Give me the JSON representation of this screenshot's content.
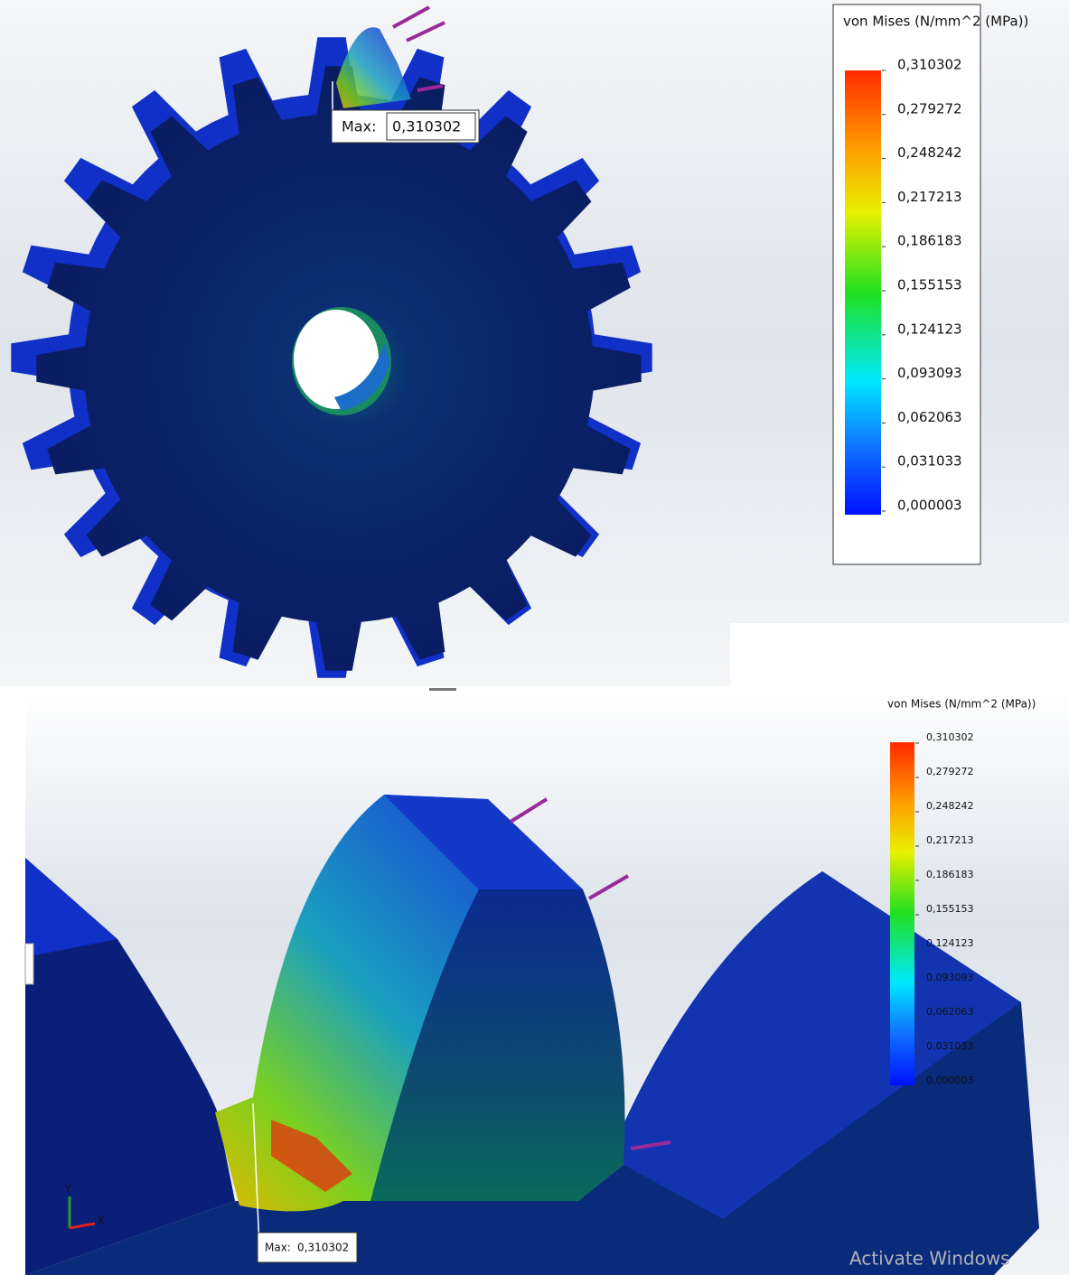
{
  "panels": [
    {
      "legend": {
        "title": "von Mises (N/mm^2 (MPa))",
        "labels": [
          "0,310302",
          "0,279272",
          "0,248242",
          "0,217213",
          "0,186183",
          "0,155153",
          "0,124123",
          "0,093093",
          "0,062063",
          "0,031033",
          "0,000003"
        ]
      },
      "probe": {
        "label": "Max:",
        "value": "0,310302"
      }
    },
    {
      "legend": {
        "title": "von Mises (N/mm^2 (MPa))",
        "labels": [
          "0,310302",
          "0,279272",
          "0,248242",
          "0,217213",
          "0,186183",
          "0,155153",
          "0,124123",
          "0,093093",
          "0,062063",
          "0,031033",
          "0,000003"
        ]
      },
      "probe": {
        "label": "Max:",
        "value": "0,310302"
      },
      "triad": {
        "y": "Y",
        "x": "X"
      },
      "watermark": "Activate Windows"
    }
  ]
}
